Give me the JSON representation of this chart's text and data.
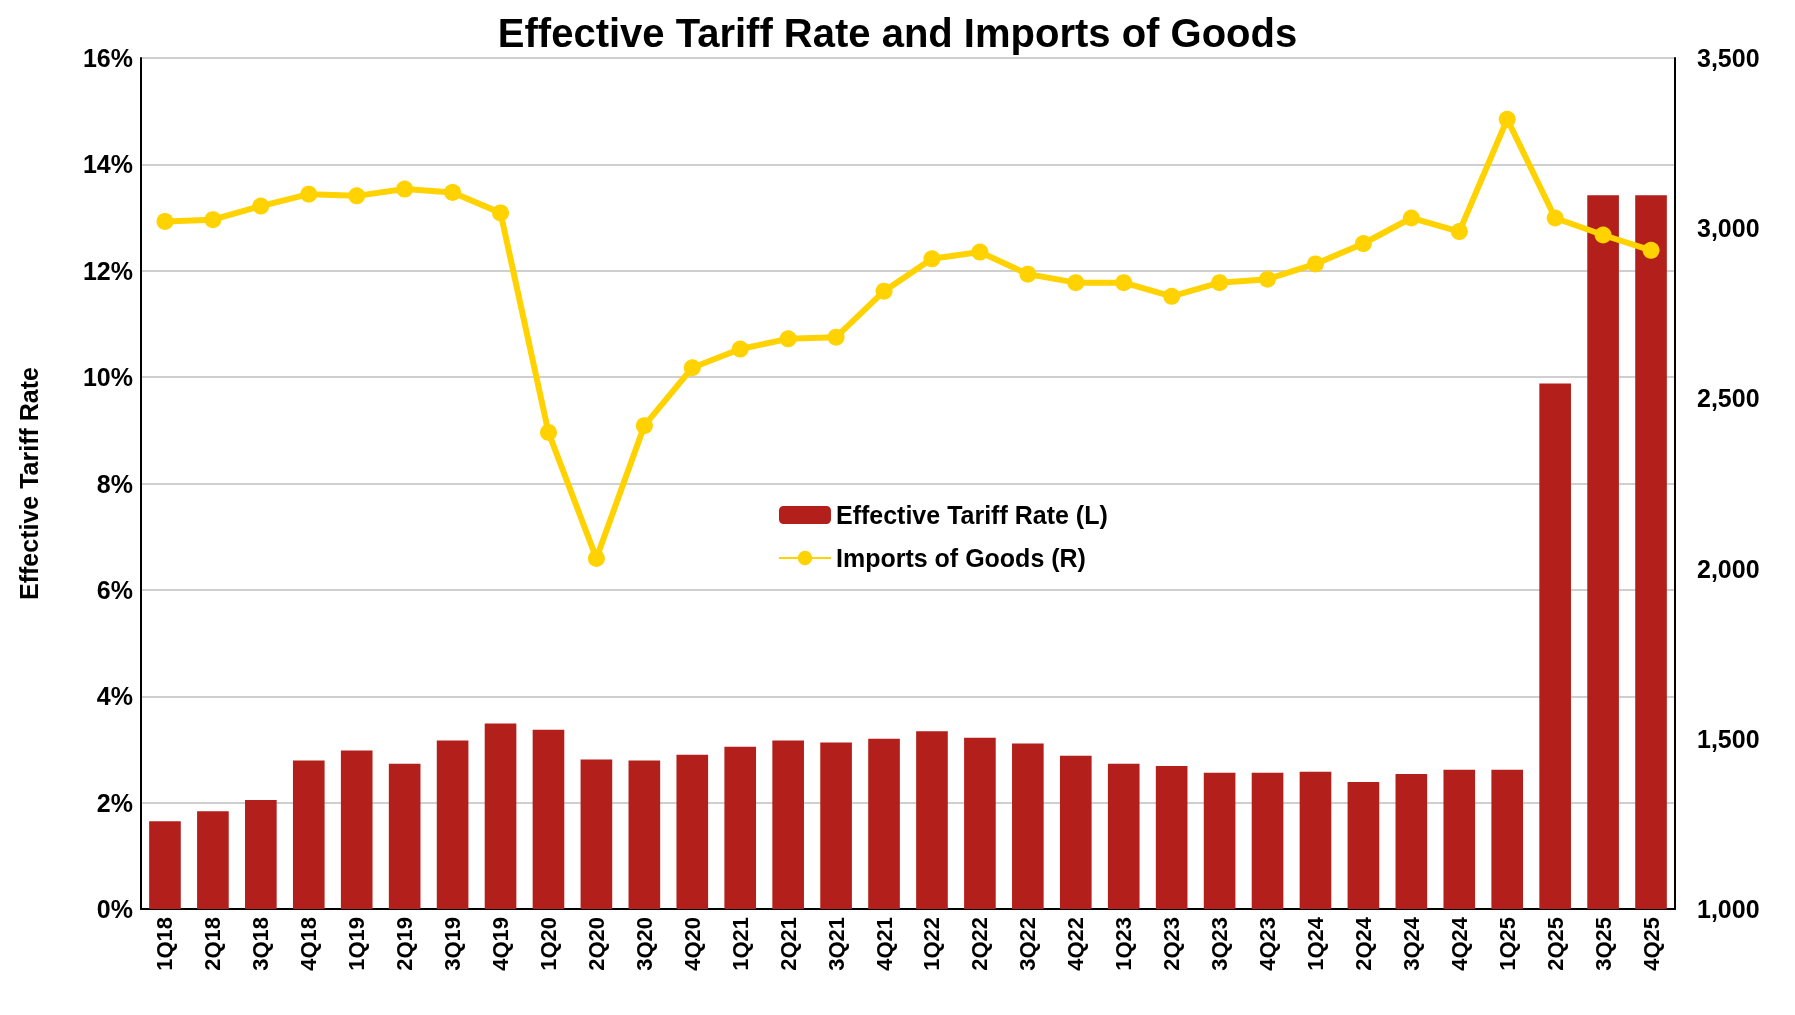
{
  "chart_data": {
    "type": "bar",
    "title": "Effective Tariff Rate and Imports of Goods",
    "ylabel": "Effective Tariff Rate",
    "categories": [
      "1Q18",
      "2Q18",
      "3Q18",
      "4Q18",
      "1Q19",
      "2Q19",
      "3Q19",
      "4Q19",
      "1Q20",
      "2Q20",
      "3Q20",
      "4Q20",
      "1Q21",
      "2Q21",
      "3Q21",
      "4Q21",
      "1Q22",
      "2Q22",
      "3Q22",
      "4Q22",
      "1Q23",
      "2Q23",
      "3Q23",
      "4Q23",
      "1Q24",
      "2Q24",
      "3Q24",
      "4Q24",
      "1Q25",
      "2Q25",
      "3Q25",
      "4Q25"
    ],
    "series": [
      {
        "name": "Effective Tariff Rate (L)",
        "color": "#b31f1a",
        "values": [
          1.65,
          1.84,
          2.05,
          2.79,
          2.98,
          2.73,
          3.17,
          3.49,
          3.37,
          2.81,
          2.79,
          2.9,
          3.05,
          3.17,
          3.13,
          3.2,
          3.34,
          3.22,
          3.11,
          2.88,
          2.73,
          2.69,
          2.56,
          2.56,
          2.58,
          2.39,
          2.54,
          2.62,
          2.62,
          9.88,
          13.42,
          13.42
        ]
      },
      {
        "name": "Imports of Goods (R)",
        "type": "line",
        "axis": "y2",
        "color": "#ffd200",
        "marker": "circle",
        "values": [
          3020,
          3025,
          3065,
          3100,
          3095,
          3115,
          3105,
          3045,
          2400,
          2030,
          2420,
          2590,
          2645,
          2675,
          2680,
          2815,
          2910,
          2930,
          2865,
          2840,
          2840,
          2800,
          2840,
          2850,
          2895,
          2955,
          3030,
          2990,
          3320,
          3030,
          2980,
          2935
        ]
      }
    ],
    "ylim": [
      0,
      16
    ],
    "yticks": [
      {
        "value": 0,
        "label": "0%"
      },
      {
        "value": 2,
        "label": "2%"
      },
      {
        "value": 4,
        "label": "4%"
      },
      {
        "value": 6,
        "label": "6%"
      },
      {
        "value": 8,
        "label": "8%"
      },
      {
        "value": 10,
        "label": "10%"
      },
      {
        "value": 12,
        "label": "12%"
      },
      {
        "value": 14,
        "label": "14%"
      },
      {
        "value": 16,
        "label": "16%"
      }
    ],
    "y2lim": [
      1000,
      3500
    ],
    "y2ticks": [
      {
        "value": 1000,
        "label": "1,000"
      },
      {
        "value": 1500,
        "label": "1,500"
      },
      {
        "value": 2000,
        "label": "2,000"
      },
      {
        "value": 2500,
        "label": "2,500"
      },
      {
        "value": 3000,
        "label": "3,000"
      },
      {
        "value": 3500,
        "label": "3,500"
      }
    ],
    "grid": "y",
    "legend": "center"
  }
}
